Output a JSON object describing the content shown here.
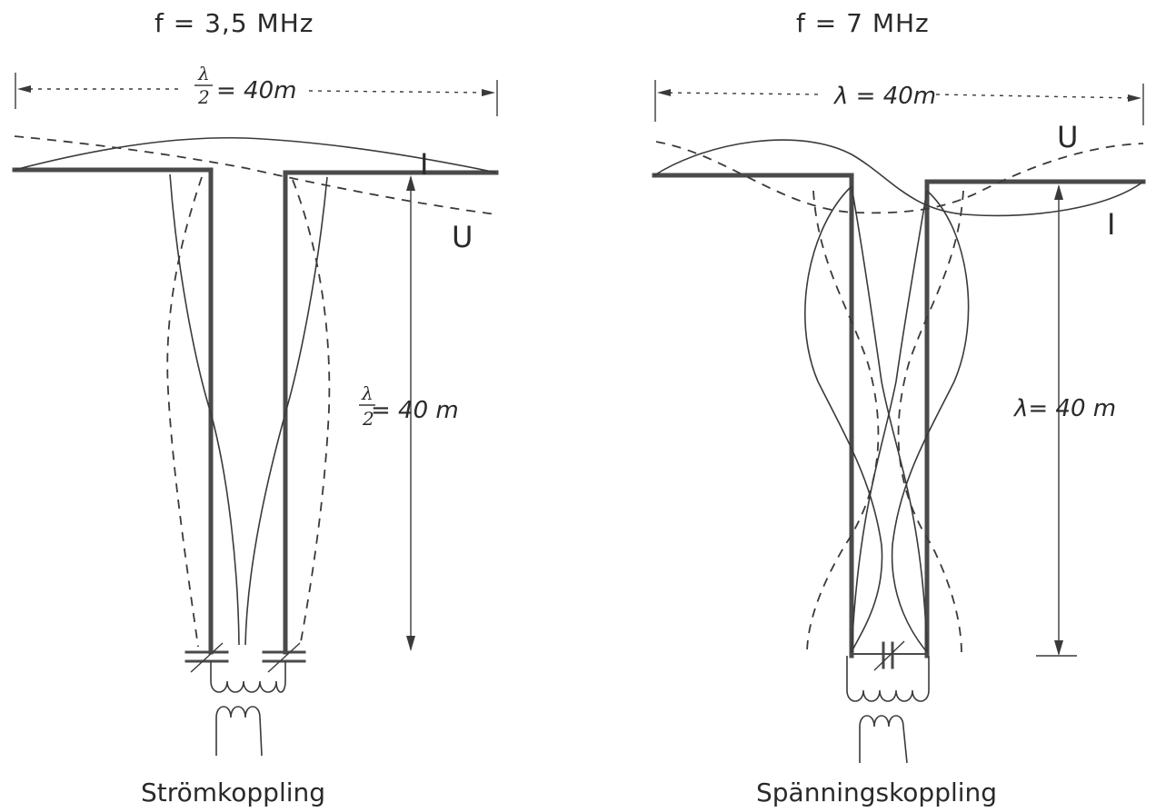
{
  "left": {
    "frequency": "f  =  3,5  MHz",
    "width_label": "= 40m",
    "height_label": "= 40 m",
    "fraction_num": "λ",
    "fraction_den": "2",
    "current_label": "I",
    "voltage_label": "U",
    "caption": "Strömkoppling"
  },
  "right": {
    "frequency": "f  =  7  MHz",
    "width_label": "λ = 40m",
    "height_label": "λ= 40 m",
    "current_label": "I",
    "voltage_label": "U",
    "caption": "Spänningskoppling"
  }
}
